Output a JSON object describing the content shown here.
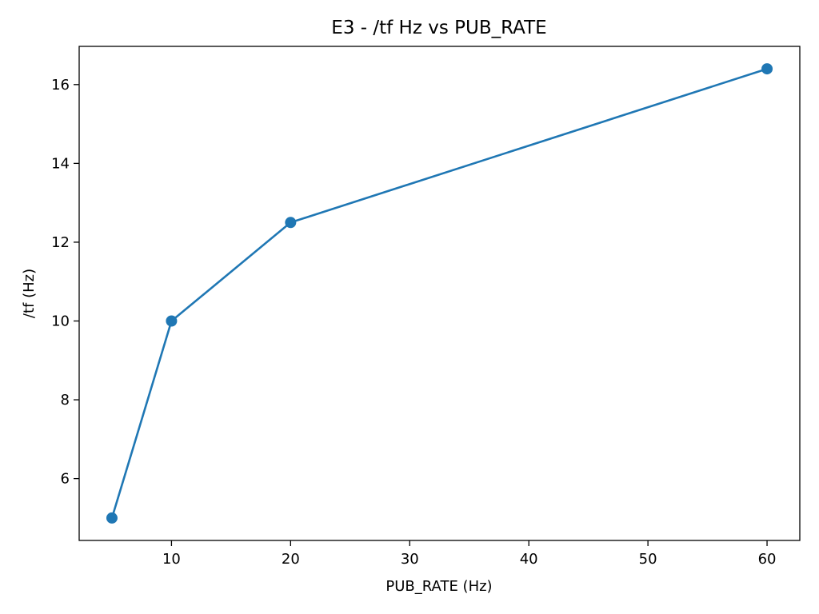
{
  "chart_data": {
    "type": "line",
    "title": "E3 - /tf Hz vs PUB_RATE",
    "xlabel": "PUB_RATE (Hz)",
    "ylabel": "/tf (Hz)",
    "x": [
      5,
      10,
      20,
      60
    ],
    "series": [
      {
        "values": [
          5.0,
          10.0,
          12.5,
          16.4
        ],
        "color": "#1f77b4",
        "marker": "circle"
      }
    ],
    "xlim": [
      2.25,
      62.75
    ],
    "ylim": [
      4.43,
      16.97
    ],
    "xticks": [
      10,
      20,
      30,
      40,
      50,
      60
    ],
    "yticks": [
      6,
      8,
      10,
      12,
      14,
      16
    ],
    "grid": false
  }
}
